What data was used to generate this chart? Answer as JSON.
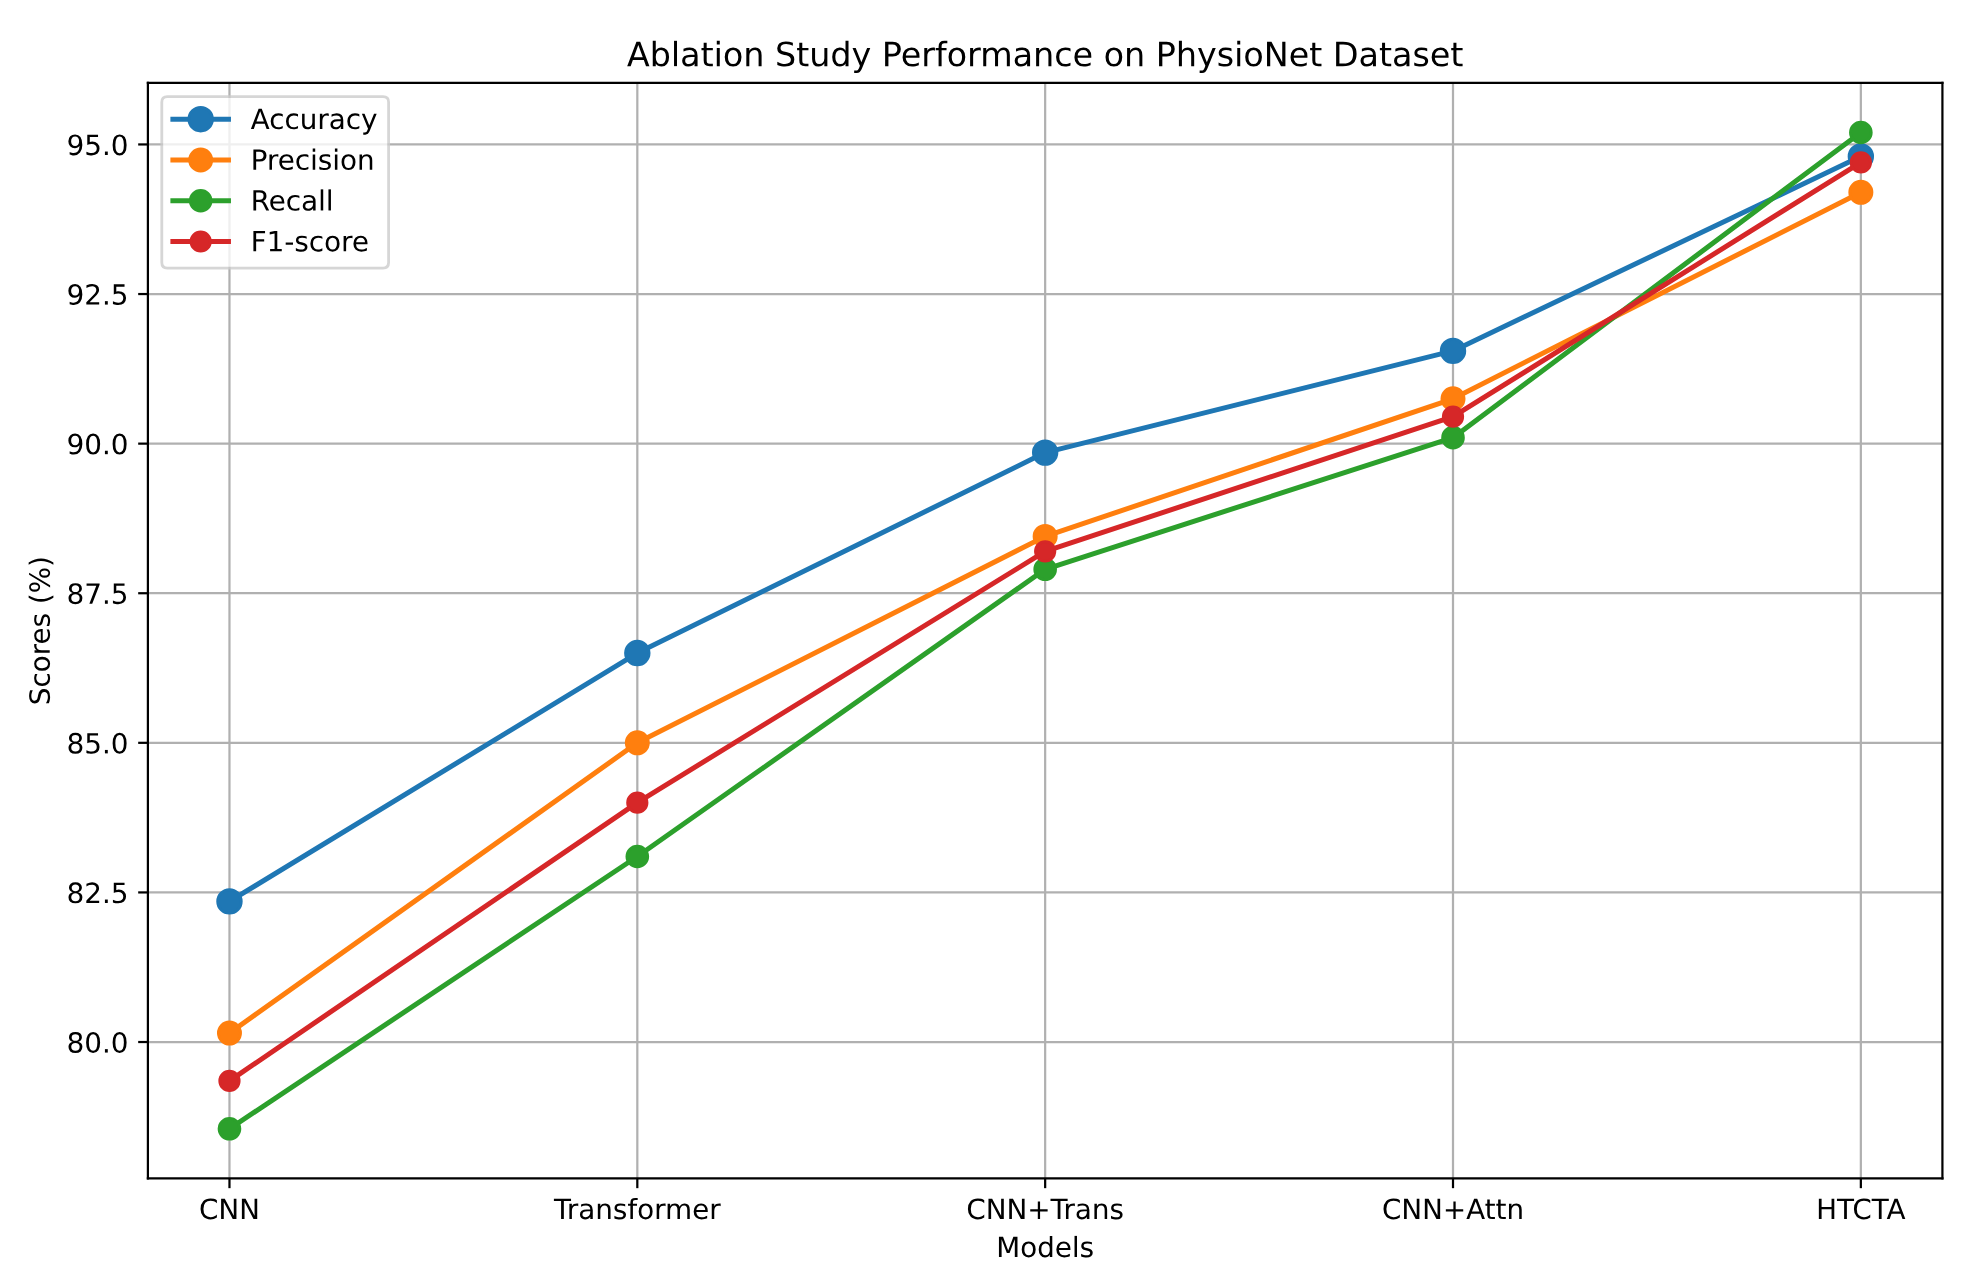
{
  "chart_data": {
    "type": "line",
    "title": "Ablation Study Performance on PhysioNet Dataset",
    "xlabel": "Models",
    "ylabel": "Scores (%)",
    "categories": [
      "CNN",
      "Transformer",
      "CNN+Trans",
      "CNN+Attn",
      "HTCTA"
    ],
    "series": [
      {
        "name": "Accuracy",
        "color": "#1f77b4",
        "values": [
          82.35,
          86.5,
          89.85,
          91.55,
          94.8
        ]
      },
      {
        "name": "Precision",
        "color": "#ff7f0e",
        "values": [
          80.15,
          85.0,
          88.45,
          90.75,
          94.2
        ]
      },
      {
        "name": "Recall",
        "color": "#2ca02c",
        "values": [
          78.55,
          83.1,
          87.9,
          90.1,
          95.2
        ]
      },
      {
        "name": "F1-score",
        "color": "#d62728",
        "values": [
          79.35,
          84.0,
          88.2,
          90.45,
          94.7
        ]
      }
    ],
    "ylim": [
      77.72,
      96.03
    ],
    "yticks": [
      {
        "value": 80,
        "label": "80.0"
      },
      {
        "value": 82.5,
        "label": "82.5"
      },
      {
        "value": 85,
        "label": "85.0"
      },
      {
        "value": 87.5,
        "label": "87.5"
      },
      {
        "value": 90,
        "label": "90.0"
      },
      {
        "value": 92.5,
        "label": "92.5"
      },
      {
        "value": 95,
        "label": "95.0"
      }
    ],
    "grid": true,
    "legend": "top left",
    "marker": "circle",
    "line_style": "solid"
  }
}
